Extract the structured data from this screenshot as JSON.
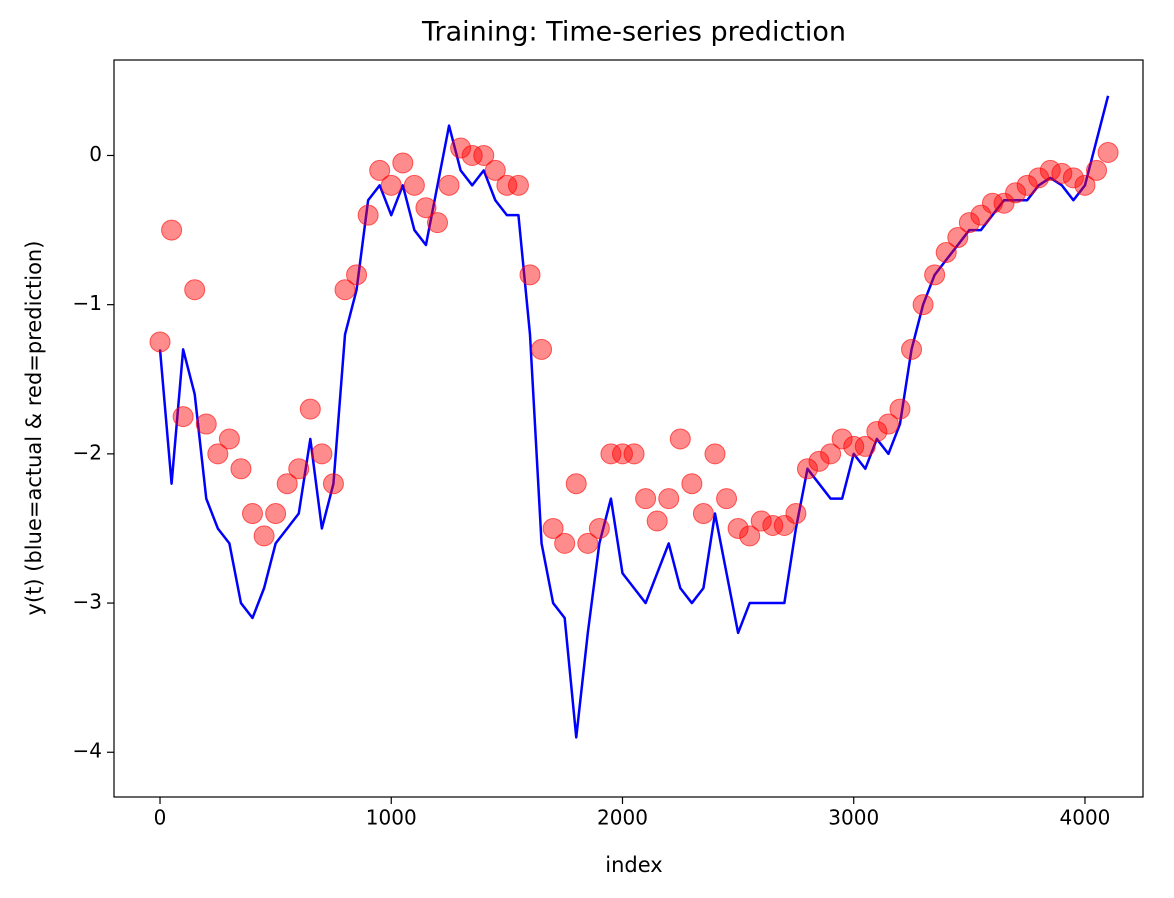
{
  "chart_data": {
    "type": "line",
    "title": "Training: Time-series prediction",
    "xlabel": "index",
    "ylabel": "y(t) (blue=actual & red=prediction)",
    "x": [
      0,
      50,
      100,
      150,
      200,
      250,
      300,
      350,
      400,
      450,
      500,
      550,
      600,
      650,
      700,
      750,
      800,
      850,
      900,
      950,
      1000,
      1050,
      1100,
      1150,
      1200,
      1250,
      1300,
      1350,
      1400,
      1450,
      1500,
      1550,
      1600,
      1650,
      1700,
      1750,
      1800,
      1850,
      1900,
      1950,
      2000,
      2050,
      2100,
      2150,
      2200,
      2250,
      2300,
      2350,
      2400,
      2450,
      2500,
      2550,
      2600,
      2650,
      2700,
      2750,
      2800,
      2850,
      2900,
      2950,
      3000,
      3050,
      3100,
      3150,
      3200,
      3250,
      3300,
      3350,
      3400,
      3450,
      3500,
      3550,
      3600,
      3650,
      3700,
      3750,
      3800,
      3850,
      3900,
      3950,
      4000,
      4050,
      4100
    ],
    "series": [
      {
        "type": "line",
        "color": "#0000ff",
        "values": [
          -1.3,
          -2.2,
          -1.3,
          -1.6,
          -2.3,
          -2.5,
          -2.6,
          -3.0,
          -3.1,
          -2.9,
          -2.6,
          -2.5,
          -2.4,
          -1.9,
          -2.5,
          -2.2,
          -1.2,
          -0.9,
          -0.3,
          -0.2,
          -0.4,
          -0.2,
          -0.5,
          -0.6,
          -0.2,
          0.2,
          -0.1,
          -0.2,
          -0.1,
          -0.3,
          -0.4,
          -0.4,
          -1.2,
          -2.6,
          -3.0,
          -3.1,
          -3.9,
          -3.2,
          -2.6,
          -2.3,
          -2.8,
          -2.9,
          -3.0,
          -2.8,
          -2.6,
          -2.9,
          -3.0,
          -2.9,
          -2.4,
          -2.8,
          -3.2,
          -3.0,
          -3.0,
          -3.0,
          -3.0,
          -2.5,
          -2.1,
          -2.2,
          -2.3,
          -2.3,
          -2.0,
          -2.1,
          -1.9,
          -2.0,
          -1.8,
          -1.3,
          -1.0,
          -0.8,
          -0.7,
          -0.6,
          -0.5,
          -0.5,
          -0.4,
          -0.3,
          -0.3,
          -0.3,
          -0.2,
          -0.15,
          -0.2,
          -0.3,
          -0.2,
          0.1,
          0.4
        ]
      },
      {
        "type": "scatter",
        "color": "#ff0000",
        "values": [
          -1.25,
          -0.5,
          -1.75,
          -0.9,
          -1.8,
          -2.0,
          -1.9,
          -2.1,
          -2.4,
          -2.55,
          -2.4,
          -2.2,
          -2.1,
          -1.7,
          -2.0,
          -2.2,
          -0.9,
          -0.8,
          -0.4,
          -0.1,
          -0.2,
          -0.05,
          -0.2,
          -0.35,
          -0.45,
          -0.2,
          0.05,
          0.0,
          0.0,
          -0.1,
          -0.2,
          -0.2,
          -0.8,
          -1.3,
          -2.5,
          -2.6,
          -2.2,
          -2.6,
          -2.5,
          -2.0,
          -2.0,
          -2.0,
          -2.3,
          -2.45,
          -2.3,
          -1.9,
          -2.2,
          -2.4,
          -2.0,
          -2.3,
          -2.5,
          -2.55,
          -2.45,
          -2.48,
          -2.48,
          -2.4,
          -2.1,
          -2.05,
          -2.0,
          -1.9,
          -1.95,
          -1.95,
          -1.85,
          -1.8,
          -1.7,
          -1.3,
          -1.0,
          -0.8,
          -0.65,
          -0.55,
          -0.45,
          -0.4,
          -0.32,
          -0.32,
          -0.25,
          -0.2,
          -0.15,
          -0.1,
          -0.12,
          -0.15,
          -0.2,
          -0.1,
          0.02
        ]
      }
    ],
    "xlim": [
      -199,
      4251
    ],
    "ylim": [
      -4.3,
      0.64
    ],
    "xticks": [
      0,
      1000,
      2000,
      3000,
      4000
    ],
    "yticks": [
      {
        "value": 0,
        "label": "0"
      },
      {
        "value": -1,
        "label": "−1"
      },
      {
        "value": -2,
        "label": "−2"
      },
      {
        "value": -3,
        "label": "−3"
      },
      {
        "value": -4,
        "label": "−4"
      }
    ],
    "grid": false
  }
}
